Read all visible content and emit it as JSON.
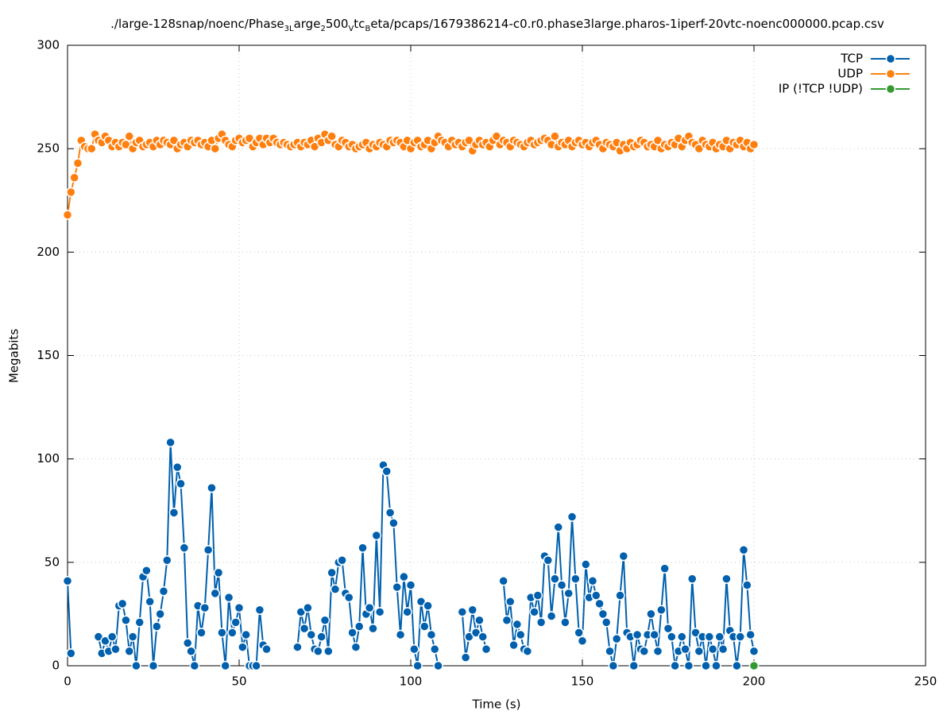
{
  "chart_data": {
    "type": "line",
    "title": [
      "./large-128snap/noenc/Phase",
      "3L",
      "arge",
      "2",
      "500",
      "V",
      "tc",
      "B",
      "eta/pcaps/1679386214-c0.r0.phase3large.pharos-1iperf-20vtc-noenc000000.pcap.csv"
    ],
    "xlabel": "Time (s)",
    "ylabel": "Megabits",
    "xlim": [
      0,
      250
    ],
    "ylim": [
      0,
      300
    ],
    "xticks": [
      0,
      50,
      100,
      150,
      200,
      250
    ],
    "yticks": [
      0,
      50,
      100,
      150,
      200,
      250,
      300
    ],
    "grid": true,
    "legend": "top-right",
    "x": [
      0,
      1,
      2,
      3,
      4,
      5,
      6,
      7,
      8,
      9,
      10,
      11,
      12,
      13,
      14,
      15,
      16,
      17,
      18,
      19,
      20,
      21,
      22,
      23,
      24,
      25,
      26,
      27,
      28,
      29,
      30,
      31,
      32,
      33,
      34,
      35,
      36,
      37,
      38,
      39,
      40,
      41,
      42,
      43,
      44,
      45,
      46,
      47,
      48,
      49,
      50,
      51,
      52,
      53,
      54,
      55,
      56,
      57,
      58,
      59,
      60,
      61,
      62,
      63,
      64,
      65,
      66,
      67,
      68,
      69,
      70,
      71,
      72,
      73,
      74,
      75,
      76,
      77,
      78,
      79,
      80,
      81,
      82,
      83,
      84,
      85,
      86,
      87,
      88,
      89,
      90,
      91,
      92,
      93,
      94,
      95,
      96,
      97,
      98,
      99,
      100,
      101,
      102,
      103,
      104,
      105,
      106,
      107,
      108,
      109,
      110,
      111,
      112,
      113,
      114,
      115,
      116,
      117,
      118,
      119,
      120,
      121,
      122,
      123,
      124,
      125,
      126,
      127,
      128,
      129,
      130,
      131,
      132,
      133,
      134,
      135,
      136,
      137,
      138,
      139,
      140,
      141,
      142,
      143,
      144,
      145,
      146,
      147,
      148,
      149,
      150,
      151,
      152,
      153,
      154,
      155,
      156,
      157,
      158,
      159,
      160,
      161,
      162,
      163,
      164,
      165,
      166,
      167,
      168,
      169,
      170,
      171,
      172,
      173,
      174,
      175,
      176,
      177,
      178,
      179,
      180,
      181,
      182,
      183,
      184,
      185,
      186,
      187,
      188,
      189,
      190,
      191,
      192,
      193,
      194,
      195,
      196,
      197,
      198,
      199,
      200
    ],
    "series": [
      {
        "name": "TCP",
        "color": "#0060ad",
        "values": [
          41,
          6,
          null,
          null,
          null,
          null,
          null,
          null,
          null,
          14,
          6,
          12,
          7,
          14,
          8,
          29,
          30,
          22,
          7,
          14,
          0,
          21,
          43,
          46,
          31,
          0,
          19,
          25,
          36,
          51,
          108,
          74,
          96,
          88,
          57,
          11,
          7,
          0,
          29,
          16,
          28,
          56,
          86,
          35,
          45,
          16,
          0,
          33,
          16,
          21,
          28,
          9,
          15,
          0,
          0,
          0,
          27,
          10,
          8,
          null,
          null,
          null,
          null,
          null,
          null,
          null,
          null,
          9,
          26,
          18,
          28,
          15,
          8,
          7,
          14,
          22,
          7,
          45,
          37,
          50,
          51,
          35,
          33,
          16,
          9,
          19,
          57,
          25,
          28,
          18,
          63,
          26,
          97,
          94,
          74,
          69,
          38,
          15,
          43,
          26,
          39,
          8,
          0,
          31,
          19,
          29,
          15,
          8,
          0,
          null,
          null,
          null,
          null,
          null,
          null,
          26,
          4,
          14,
          27,
          16,
          22,
          14,
          8,
          null,
          null,
          null,
          null,
          41,
          22,
          31,
          10,
          20,
          15,
          8,
          7,
          33,
          26,
          34,
          21,
          53,
          51,
          24,
          42,
          67,
          39,
          21,
          35,
          72,
          42,
          16,
          12,
          49,
          33,
          41,
          34,
          30,
          25,
          21,
          7,
          0,
          13,
          34,
          53,
          16,
          14,
          0,
          15,
          8,
          7,
          15,
          25,
          15,
          7,
          27,
          47,
          18,
          14,
          0,
          7,
          14,
          8,
          0,
          42,
          16,
          7,
          14,
          0,
          14,
          8,
          0,
          14,
          8,
          42,
          17,
          14,
          0,
          14,
          56,
          39,
          15,
          7
        ]
      },
      {
        "name": "UDP",
        "color": "#ff7f0e",
        "values": [
          218,
          229,
          236,
          243,
          254,
          251,
          250,
          250,
          257,
          254,
          253,
          256,
          254,
          251,
          253,
          251,
          253,
          252,
          256,
          250,
          253,
          254,
          251,
          252,
          253,
          251,
          254,
          252,
          254,
          253,
          252,
          254,
          250,
          252,
          253,
          251,
          254,
          253,
          254,
          252,
          253,
          251,
          254,
          250,
          255,
          257,
          254,
          252,
          251,
          254,
          255,
          253,
          254,
          255,
          251,
          253,
          255,
          252,
          255,
          253,
          255,
          253,
          252,
          253,
          252,
          251,
          252,
          253,
          251,
          253,
          252,
          254,
          251,
          255,
          253,
          257,
          254,
          256,
          252,
          251,
          254,
          253,
          251,
          252,
          250,
          251,
          252,
          253,
          250,
          252,
          251,
          253,
          252,
          251,
          254,
          253,
          254,
          253,
          251,
          254,
          250,
          253,
          254,
          251,
          252,
          254,
          250,
          253,
          256,
          254,
          253,
          251,
          254,
          252,
          253,
          251,
          253,
          254,
          249,
          252,
          254,
          252,
          253,
          251,
          254,
          256,
          252,
          254,
          253,
          251,
          254,
          253,
          252,
          251,
          253,
          254,
          252,
          253,
          254,
          255,
          254,
          252,
          256,
          251,
          253,
          252,
          254,
          251,
          253,
          254,
          252,
          253,
          251,
          253,
          254,
          252,
          250,
          253,
          252,
          251,
          253,
          249,
          252,
          250,
          253,
          251,
          252,
          254,
          253,
          251,
          252,
          251,
          254,
          250,
          252,
          251,
          253,
          252,
          255,
          251,
          254,
          256,
          253,
          252,
          250,
          254,
          252,
          251,
          253,
          250,
          252,
          251,
          254,
          250,
          253,
          252,
          254,
          251,
          253,
          250,
          252
        ]
      },
      {
        "name": "IP (!TCP  !UDP)",
        "color": "#339933",
        "x": [
          200
        ],
        "values": [
          0
        ]
      }
    ]
  }
}
